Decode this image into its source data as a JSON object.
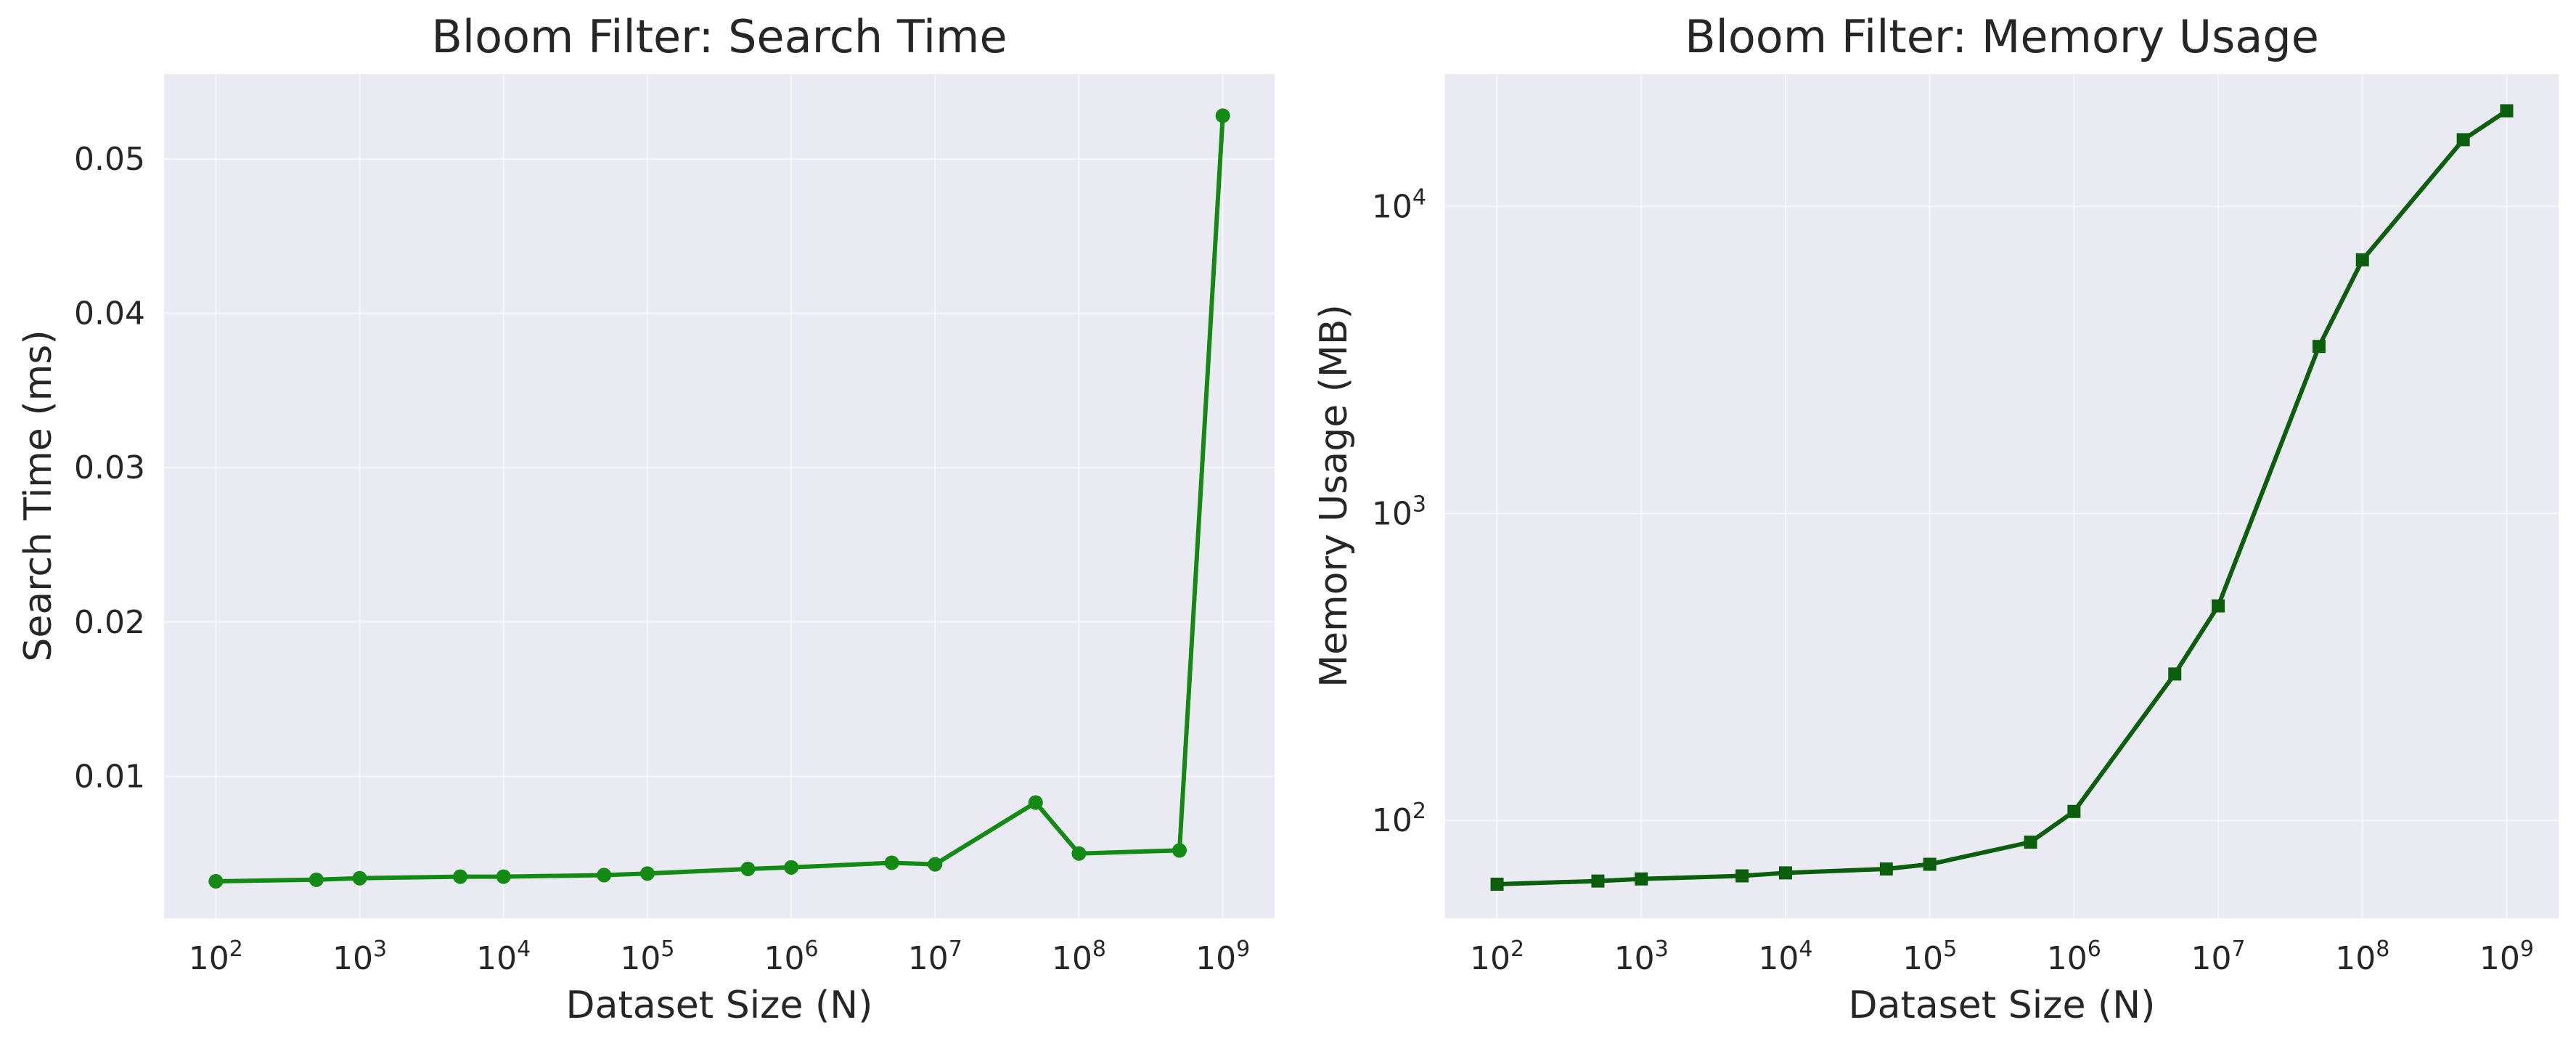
{
  "chart_data": [
    {
      "type": "line",
      "title": "Bloom Filter: Search Time",
      "xlabel": "Dataset Size (N)",
      "ylabel": "Search Time (ms)",
      "xscale": "log",
      "yscale": "linear",
      "grid": true,
      "x_ticks": [
        "10^2",
        "10^3",
        "10^4",
        "10^5",
        "10^6",
        "10^7",
        "10^8",
        "10^9"
      ],
      "y_ticks": [
        "0.01",
        "0.02",
        "0.03",
        "0.04",
        "0.05"
      ],
      "ylim": [
        0.0008,
        0.0555
      ],
      "color": "#138a13",
      "marker": "circle",
      "series": [
        {
          "x": [
            100,
            500,
            1000,
            5000,
            10000,
            50000,
            100000,
            500000,
            1000000,
            5000000,
            10000000,
            50000000,
            100000000,
            500000000,
            1000000000
          ],
          "values": [
            0.0032,
            0.0033,
            0.0034,
            0.0035,
            0.0035,
            0.0036,
            0.0037,
            0.004,
            0.0041,
            0.0044,
            0.0043,
            0.0083,
            0.005,
            0.0052,
            0.0528
          ]
        }
      ]
    },
    {
      "type": "line",
      "title": "Bloom Filter: Memory Usage",
      "xlabel": "Dataset Size (N)",
      "ylabel": "Memory Usage (MB)",
      "xscale": "log",
      "yscale": "log",
      "grid": true,
      "x_ticks": [
        "10^2",
        "10^3",
        "10^4",
        "10^5",
        "10^6",
        "10^7",
        "10^8",
        "10^9"
      ],
      "y_ticks": [
        "10^2",
        "10^3",
        "10^4"
      ],
      "ylim": [
        48,
        27000
      ],
      "color": "#0b5e0b",
      "marker": "square",
      "series": [
        {
          "x": [
            100,
            500,
            1000,
            5000,
            10000,
            50000,
            100000,
            500000,
            1000000,
            5000000,
            10000000,
            50000000,
            100000000,
            500000000,
            1000000000
          ],
          "values": [
            62,
            63.5,
            64.5,
            66,
            67.5,
            69.5,
            72,
            85,
            107,
            300,
            500,
            3500,
            6700,
            16500,
            20500
          ]
        }
      ]
    }
  ]
}
